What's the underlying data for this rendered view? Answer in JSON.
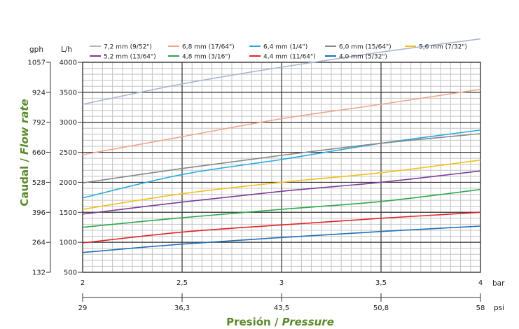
{
  "chart_data": {
    "type": "line",
    "x": [
      2,
      2.5,
      3,
      3.5,
      4
    ],
    "xlabel": {
      "main": "Presión",
      "sep": " / ",
      "alt": "Pressure"
    },
    "ylabel": {
      "main": "Caudal",
      "sep": " / ",
      "alt": "Flow rate"
    },
    "x_units": {
      "primary": "bar",
      "secondary": "psi"
    },
    "y_units": {
      "primary": "L/h",
      "secondary": "gph"
    },
    "xlim": [
      2,
      4
    ],
    "ylim": [
      500,
      4000
    ],
    "x_ticks": [
      "2",
      "2,5",
      "3",
      "3,5",
      "4"
    ],
    "x_ticks_psi": [
      "29",
      "36,3",
      "43,5",
      "50,8",
      "58"
    ],
    "y_ticks": [
      "500",
      "1000",
      "1500",
      "2000",
      "2500",
      "3000",
      "3500",
      "4000"
    ],
    "y_ticks_gph": [
      "132",
      "264",
      "396",
      "528",
      "660",
      "792",
      "924",
      "1057"
    ],
    "grid": true,
    "legend_position": "top",
    "series": [
      {
        "name": "7,2 mm (9/52\")",
        "color": "#a9b8cc",
        "values": [
          3300,
          3640,
          3920,
          4170,
          4390
        ]
      },
      {
        "name": "6,8 mm (17/64\")",
        "color": "#f0a58a",
        "values": [
          2460,
          2760,
          3060,
          3300,
          3550
        ]
      },
      {
        "name": "6,4 mm (1/4\")",
        "color": "#29a8e0",
        "values": [
          1740,
          2130,
          2380,
          2650,
          2870
        ]
      },
      {
        "name": "6,0 mm (15/64\")",
        "color": "#888888",
        "values": [
          1990,
          2230,
          2450,
          2650,
          2810
        ]
      },
      {
        "name": "5,6 mm (7/32\")",
        "color": "#f5bf1a",
        "values": [
          1550,
          1810,
          2000,
          2160,
          2370
        ]
      },
      {
        "name": "5,2 mm (13/64\")",
        "color": "#7d3b9d",
        "values": [
          1470,
          1670,
          1850,
          2000,
          2190
        ]
      },
      {
        "name": "4,8 mm (3/16\")",
        "color": "#2ba84a",
        "values": [
          1250,
          1410,
          1550,
          1680,
          1880
        ]
      },
      {
        "name": "4,4 mm (11/64\")",
        "color": "#e0232b",
        "values": [
          990,
          1170,
          1290,
          1400,
          1500
        ]
      },
      {
        "name": "4,0 mm (5/32\")",
        "color": "#1e6fb8",
        "values": [
          830,
          970,
          1080,
          1180,
          1270
        ]
      }
    ]
  }
}
